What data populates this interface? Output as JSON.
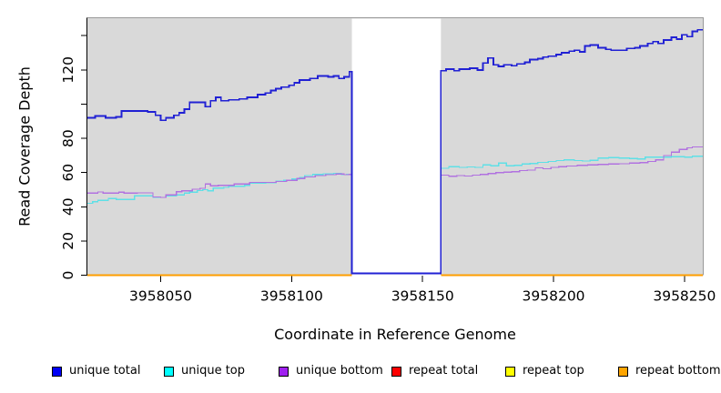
{
  "figure": {
    "x_axis_title": "Coordinate in Reference Genome",
    "y_axis_title": "Read Coverage Depth"
  },
  "chart_data": {
    "type": "line",
    "step": true,
    "title": "",
    "xlabel": "Coordinate in Reference Genome",
    "ylabel": "Read Coverage Depth",
    "xlim": [
      3958022,
      3958257
    ],
    "ylim": [
      0,
      150.5
    ],
    "x_ticks": [
      3958050,
      3958100,
      3958150,
      3958200,
      3958250
    ],
    "y_ticks": [
      0,
      20,
      40,
      60,
      80,
      100,
      120,
      140
    ],
    "y_tick_labels": [
      "0",
      "20",
      "40",
      "60",
      "80",
      "",
      "120",
      ""
    ],
    "grid": false,
    "legend_position": "bottom",
    "plot_bg": "#d9d9d9",
    "border_color": "#999999",
    "axis_color": "#000000",
    "gap_region": {
      "x0": 3958123,
      "x1": 3958157,
      "color": "#ffffff"
    },
    "series": [
      {
        "name": "unique total",
        "color": "#0000f5",
        "line_color": "#2121d4",
        "width": 1.8,
        "z": 6,
        "segments": [
          [
            [
              3958022,
              92
            ],
            [
              3958025,
              93
            ],
            [
              3958029,
              92
            ],
            [
              3958033,
              92.5
            ],
            [
              3958035,
              96
            ],
            [
              3958045,
              95.5
            ],
            [
              3958048,
              93.5
            ],
            [
              3958050,
              90.5
            ],
            [
              3958052,
              92
            ],
            [
              3958055,
              93.5
            ],
            [
              3958057,
              95
            ],
            [
              3958059,
              97
            ],
            [
              3958061,
              101
            ],
            [
              3958067,
              98.5
            ],
            [
              3958069,
              102
            ],
            [
              3958071,
              104
            ],
            [
              3958073,
              102
            ],
            [
              3958076,
              102.5
            ],
            [
              3958080,
              103
            ],
            [
              3958083,
              104
            ],
            [
              3958087,
              105.5
            ],
            [
              3958090,
              106.5
            ],
            [
              3958092,
              108
            ],
            [
              3958094,
              109
            ],
            [
              3958096,
              110
            ],
            [
              3958099,
              111
            ],
            [
              3958101,
              112.5
            ],
            [
              3958103,
              114
            ],
            [
              3958107,
              115
            ],
            [
              3958110,
              116.5
            ],
            [
              3958114,
              116
            ],
            [
              3958116,
              116.5
            ],
            [
              3958118,
              115
            ],
            [
              3958120,
              116
            ],
            [
              3958122,
              119
            ],
            [
              3958123,
              1
            ],
            [
              3958157,
              119.5
            ],
            [
              3958159,
              120.5
            ],
            [
              3958162,
              119.5
            ],
            [
              3958164,
              120.5
            ],
            [
              3958168,
              121
            ],
            [
              3958171,
              120
            ],
            [
              3958173,
              124
            ],
            [
              3958175,
              127
            ],
            [
              3958177,
              123
            ],
            [
              3958179,
              122
            ],
            [
              3958181,
              123
            ],
            [
              3958184,
              122.5
            ],
            [
              3958186,
              123.5
            ],
            [
              3958189,
              124.5
            ],
            [
              3958191,
              126
            ],
            [
              3958194,
              126.5
            ],
            [
              3958196,
              127.5
            ],
            [
              3958198,
              128
            ],
            [
              3958201,
              129
            ],
            [
              3958203,
              130
            ],
            [
              3958206,
              131
            ],
            [
              3958208,
              131.5
            ],
            [
              3958210,
              130.5
            ],
            [
              3958212,
              134
            ],
            [
              3958214,
              134.5
            ],
            [
              3958217,
              133
            ],
            [
              3958220,
              132
            ],
            [
              3958222,
              131.5
            ],
            [
              3958225,
              131.5
            ],
            [
              3958228,
              132.5
            ],
            [
              3958231,
              133
            ],
            [
              3958233,
              134
            ],
            [
              3958236,
              135.5
            ],
            [
              3958238,
              136.5
            ],
            [
              3958240,
              135.5
            ],
            [
              3958242,
              137.5
            ],
            [
              3958245,
              139
            ],
            [
              3958247,
              138
            ],
            [
              3958249,
              140.5
            ],
            [
              3958251,
              139.5
            ],
            [
              3958253,
              142.5
            ],
            [
              3958255,
              143.5
            ],
            [
              3958257,
              143.5
            ]
          ]
        ]
      },
      {
        "name": "unique top",
        "color": "#00ffff",
        "line_color": "#5ee0e6",
        "width": 1.3,
        "z": 4,
        "segments": [
          [
            [
              3958022,
              42
            ],
            [
              3958024,
              43
            ],
            [
              3958026,
              43.7
            ],
            [
              3958030,
              44.8
            ],
            [
              3958033,
              44.3
            ],
            [
              3958040,
              46.4
            ],
            [
              3958047,
              45.7
            ],
            [
              3958049,
              45.5
            ],
            [
              3958052,
              46.5
            ],
            [
              3958056,
              47
            ],
            [
              3958059,
              48
            ],
            [
              3958061,
              48.5
            ],
            [
              3958064,
              49.5
            ],
            [
              3958066,
              50
            ],
            [
              3958068,
              49.3
            ],
            [
              3958070,
              51
            ],
            [
              3958074,
              51.3
            ],
            [
              3958076,
              52
            ],
            [
              3958082,
              52.5
            ],
            [
              3958084,
              53.8
            ],
            [
              3958090,
              54
            ],
            [
              3958094,
              55
            ],
            [
              3958097,
              55.5
            ],
            [
              3958100,
              56.2
            ],
            [
              3958103,
              57
            ],
            [
              3958105,
              58.3
            ],
            [
              3958108,
              59
            ],
            [
              3958112,
              59.3
            ],
            [
              3958116,
              59.6
            ],
            [
              3958119,
              58.8
            ],
            [
              3958121,
              59
            ],
            [
              3958123,
              0.8
            ],
            [
              3958157,
              62.5
            ],
            [
              3958160,
              63.5
            ],
            [
              3958164,
              63
            ],
            [
              3958167,
              63.3
            ],
            [
              3958170,
              63
            ],
            [
              3958173,
              64.5
            ],
            [
              3958176,
              64
            ],
            [
              3958179,
              65.5
            ],
            [
              3958182,
              64
            ],
            [
              3958185,
              64.3
            ],
            [
              3958188,
              65
            ],
            [
              3958191,
              65.3
            ],
            [
              3958194,
              66
            ],
            [
              3958198,
              66.5
            ],
            [
              3958201,
              67
            ],
            [
              3958204,
              67.5
            ],
            [
              3958208,
              67
            ],
            [
              3958211,
              66.8
            ],
            [
              3958214,
              67.2
            ],
            [
              3958217,
              68.5
            ],
            [
              3958221,
              68.8
            ],
            [
              3958225,
              68.5
            ],
            [
              3958229,
              68.3
            ],
            [
              3958232,
              68
            ],
            [
              3958235,
              69
            ],
            [
              3958240,
              69
            ],
            [
              3958245,
              69.3
            ],
            [
              3958250,
              69
            ],
            [
              3958253,
              69.5
            ],
            [
              3958257,
              69.5
            ]
          ]
        ]
      },
      {
        "name": "unique bottom",
        "color": "#a020f0",
        "line_color": "#b172e0",
        "width": 1.3,
        "z": 5,
        "segments": [
          [
            [
              3958022,
              48
            ],
            [
              3958026,
              48.7
            ],
            [
              3958028,
              48
            ],
            [
              3958034,
              48.5
            ],
            [
              3958036,
              48
            ],
            [
              3958041,
              48.2
            ],
            [
              3958047,
              45.8
            ],
            [
              3958050,
              45.5
            ],
            [
              3958052,
              47
            ],
            [
              3958056,
              48.8
            ],
            [
              3958058,
              49.3
            ],
            [
              3958062,
              50.3
            ],
            [
              3958065,
              50.8
            ],
            [
              3958067,
              53.3
            ],
            [
              3958069,
              52.3
            ],
            [
              3958072,
              52.5
            ],
            [
              3958078,
              53.3
            ],
            [
              3958084,
              54.3
            ],
            [
              3958090,
              54.3
            ],
            [
              3958094,
              54.8
            ],
            [
              3958098,
              55.5
            ],
            [
              3958102,
              56.5
            ],
            [
              3958105,
              57.5
            ],
            [
              3958109,
              58.3
            ],
            [
              3958113,
              58.8
            ],
            [
              3958117,
              59.2
            ],
            [
              3958120,
              58.8
            ],
            [
              3958122,
              59
            ],
            [
              3958123,
              0.8
            ],
            [
              3958157,
              58.5
            ],
            [
              3958160,
              57.8
            ],
            [
              3958163,
              58.3
            ],
            [
              3958166,
              58
            ],
            [
              3958169,
              58.5
            ],
            [
              3958172,
              59
            ],
            [
              3958175,
              59.5
            ],
            [
              3958178,
              60
            ],
            [
              3958181,
              60.3
            ],
            [
              3958184,
              60.5
            ],
            [
              3958187,
              61.2
            ],
            [
              3958190,
              61.5
            ],
            [
              3958193,
              62.8
            ],
            [
              3958196,
              62.3
            ],
            [
              3958199,
              63
            ],
            [
              3958202,
              63.5
            ],
            [
              3958205,
              63.8
            ],
            [
              3958209,
              64.2
            ],
            [
              3958213,
              64.5
            ],
            [
              3958217,
              64.8
            ],
            [
              3958221,
              65
            ],
            [
              3958225,
              65.2
            ],
            [
              3958229,
              65.5
            ],
            [
              3958233,
              65.8
            ],
            [
              3958236,
              66.5
            ],
            [
              3958239,
              67.5
            ],
            [
              3958242,
              70
            ],
            [
              3958245,
              72
            ],
            [
              3958248,
              73.5
            ],
            [
              3958251,
              74.5
            ],
            [
              3958253,
              75
            ],
            [
              3958257,
              75
            ]
          ]
        ]
      },
      {
        "name": "repeat total",
        "color": "#ff0000",
        "line_color": "#ee0000",
        "width": 1.6,
        "z": 1,
        "segments": [
          [
            [
              3958022,
              0
            ],
            [
              3958123,
              0
            ]
          ],
          [
            [
              3958157,
              0
            ],
            [
              3958257,
              0
            ]
          ]
        ]
      },
      {
        "name": "repeat top",
        "color": "#ffff00",
        "line_color": "#f5f500",
        "width": 1.6,
        "z": 2,
        "segments": [
          [
            [
              3958022,
              0
            ],
            [
              3958123,
              0
            ]
          ],
          [
            [
              3958157,
              0
            ],
            [
              3958257,
              0
            ]
          ]
        ]
      },
      {
        "name": "repeat bottom",
        "color": "#ffa500",
        "line_color": "#ff9e00",
        "width": 1.6,
        "z": 3,
        "segments": [
          [
            [
              3958022,
              0
            ],
            [
              3958123,
              0
            ]
          ],
          [
            [
              3958157,
              0
            ],
            [
              3958257,
              0
            ]
          ]
        ]
      }
    ]
  }
}
